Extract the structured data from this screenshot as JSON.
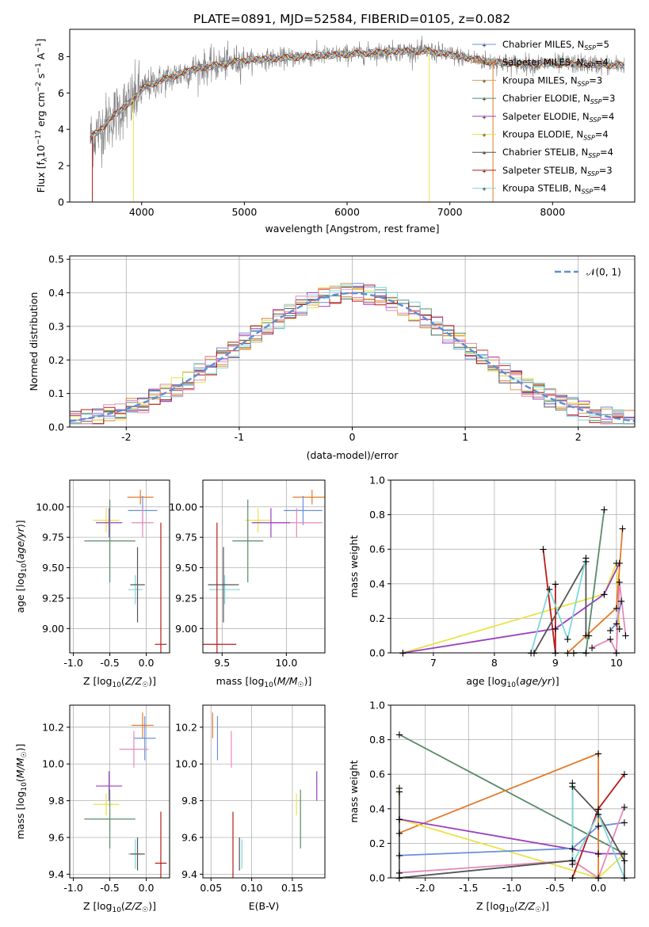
{
  "title": "PLATE=0891, MJD=52584, FIBERID=0105, z=0.082",
  "colors": {
    "Chabrier MILES": "#6a8fdc",
    "Salpeter MILES": "#e47a2a",
    "Kroupa MILES": "#d9a05a",
    "Chabrier ELODIE": "#5a8a6a",
    "Salpeter ELODIE": "#9b3fc0",
    "Kroupa ELODIE": "#e8e34a",
    "Chabrier STELIB": "#555555",
    "Salpeter STELIB": "#b81c1c",
    "Kroupa STELIB": "#7fd6dc",
    "Pink": "#e58ab8",
    "Data": "#808080"
  },
  "chart_data": [
    {
      "id": "spectrum",
      "type": "line",
      "xlabel": "wavelength [Angstrom, rest frame]",
      "ylabel": "Flux [f_λ10^-17 erg cm^-2 s^-1 A^-1]",
      "xlim": [
        3300,
        8800
      ],
      "ylim": [
        0,
        9.5
      ],
      "xticks": [
        4000,
        5000,
        6000,
        7000,
        8000
      ],
      "yticks": [
        0,
        2,
        4,
        6,
        8
      ],
      "legend_position": "right",
      "legend": [
        {
          "name": "Chabrier MILES",
          "label": "Chabrier MILES, N",
          "sub": "SSP",
          "n": "=5"
        },
        {
          "name": "Salpeter MILES",
          "label": "Salpeter MILES, N",
          "sub": "SSP",
          "n": "=4"
        },
        {
          "name": "Kroupa MILES",
          "label": "Kroupa MILES, N",
          "sub": "SSP",
          "n": "=3"
        },
        {
          "name": "Chabrier ELODIE",
          "label": "Chabrier ELODIE, N",
          "sub": "SSP",
          "n": "=3"
        },
        {
          "name": "Salpeter ELODIE",
          "label": "Salpeter ELODIE, N",
          "sub": "SSP",
          "n": "=4"
        },
        {
          "name": "Kroupa ELODIE",
          "label": "Kroupa ELODIE, N",
          "sub": "SSP",
          "n": "=4"
        },
        {
          "name": "Chabrier STELIB",
          "label": "Chabrier STELIB, N",
          "sub": "SSP",
          "n": "=4"
        },
        {
          "name": "Salpeter STELIB",
          "label": "Salpeter STELIB, N",
          "sub": "SSP",
          "n": "=3"
        },
        {
          "name": "Kroupa STELIB",
          "label": "Kroupa STELIB, N",
          "sub": "SSP",
          "n": "=4"
        }
      ],
      "continuum": {
        "x": [
          3500,
          3600,
          3700,
          3800,
          3900,
          4000,
          4100,
          4300,
          4500,
          4700,
          5000,
          5300,
          5600,
          5900,
          6200,
          6500,
          6800,
          7100,
          7400,
          7700,
          8000,
          8300,
          8700
        ],
        "y": [
          3.5,
          4.0,
          4.6,
          5.1,
          5.5,
          6.2,
          6.5,
          6.9,
          7.3,
          7.5,
          7.8,
          7.9,
          8.0,
          8.1,
          8.2,
          8.3,
          8.3,
          8.0,
          7.7,
          7.6,
          7.6,
          7.6,
          7.5
        ]
      },
      "model_range": [
        3500,
        8700
      ],
      "data_range": [
        3500,
        8700
      ],
      "dips": [
        {
          "series": "Salpeter STELIB",
          "x": 3520,
          "y": 0
        },
        {
          "series": "Kroupa ELODIE",
          "x": 3920,
          "y": 0
        },
        {
          "series": "Kroupa ELODIE",
          "x": 6800,
          "y": 0
        },
        {
          "series": "Salpeter MILES",
          "x": 7420,
          "y": 0
        }
      ]
    },
    {
      "id": "residuals",
      "type": "histogram",
      "xlabel": "(data-model)/error",
      "ylabel": "Normed distribution",
      "xlim": [
        -2.5,
        2.5
      ],
      "ylim": [
        0,
        0.51
      ],
      "xticks": [
        -2,
        -1,
        0,
        1,
        2
      ],
      "yticks": [
        0.0,
        0.1,
        0.2,
        0.3,
        0.4,
        0.5
      ],
      "grid": true,
      "legend_position": "top-right",
      "gaussian_label": "𝒩(0, 1)",
      "bin_width": 0.1
    },
    {
      "id": "age-vs-z",
      "type": "errorbar",
      "xlabel": "Z [log₁₀(Z/Z☉)]",
      "ylabel": "age  [log₁₀(age/yr)]",
      "xlim": [
        -1.05,
        0.32
      ],
      "ylim": [
        8.8,
        10.22
      ],
      "xticks": [
        -1.0,
        -0.5,
        0.0
      ],
      "yticks": [
        9.0,
        9.25,
        9.5,
        9.75,
        10.0
      ],
      "grid": true,
      "points": [
        {
          "series": "Salpeter MILES",
          "x": -0.08,
          "y": 10.08,
          "xe": 0.18,
          "ye": 0.06
        },
        {
          "series": "Chabrier MILES",
          "x": -0.05,
          "y": 9.97,
          "xe": 0.2,
          "ye": 0.12
        },
        {
          "series": "Pink",
          "x": -0.05,
          "y": 9.87,
          "xe": 0.15,
          "ye": 0.12
        },
        {
          "series": "Kroupa ELODIE",
          "x": -0.55,
          "y": 9.89,
          "xe": 0.18,
          "ye": 0.1
        },
        {
          "series": "Salpeter ELODIE",
          "x": -0.51,
          "y": 9.87,
          "xe": 0.18,
          "ye": 0.12
        },
        {
          "series": "Chabrier ELODIE",
          "x": -0.5,
          "y": 9.72,
          "xe": 0.35,
          "ye": 0.34
        },
        {
          "series": "Kroupa STELIB",
          "x": -0.15,
          "y": 9.32,
          "xe": 0.1,
          "ye": 0.12
        },
        {
          "series": "Chabrier STELIB",
          "x": -0.12,
          "y": 9.36,
          "xe": 0.1,
          "ye": 0.31
        },
        {
          "series": "Salpeter STELIB",
          "x": 0.2,
          "y": 8.87,
          "xe": 0.08,
          "ye": 1.0
        }
      ]
    },
    {
      "id": "age-vs-mass",
      "type": "errorbar",
      "xlabel": "mass [log₁₀(M/M☉)]",
      "ylabel": "",
      "xlim": [
        9.35,
        10.3
      ],
      "ylim": [
        8.8,
        10.22
      ],
      "xticks": [
        9.5,
        10.0
      ],
      "yticks": [
        9.0,
        9.25,
        9.5,
        9.75,
        10.0
      ],
      "grid": true,
      "points": [
        {
          "series": "Salpeter MILES",
          "x": 10.2,
          "y": 10.08,
          "xe": 0.15,
          "ye": 0.06
        },
        {
          "series": "Chabrier MILES",
          "x": 10.13,
          "y": 9.97,
          "xe": 0.15,
          "ye": 0.12
        },
        {
          "series": "Pink",
          "x": 10.08,
          "y": 9.87,
          "xe": 0.2,
          "ye": 0.12
        },
        {
          "series": "Kroupa ELODIE",
          "x": 9.78,
          "y": 9.89,
          "xe": 0.1,
          "ye": 0.1
        },
        {
          "series": "Salpeter ELODIE",
          "x": 9.88,
          "y": 9.87,
          "xe": 0.15,
          "ye": 0.12
        },
        {
          "series": "Chabrier ELODIE",
          "x": 9.7,
          "y": 9.72,
          "xe": 0.12,
          "ye": 0.34
        },
        {
          "series": "Kroupa STELIB",
          "x": 9.52,
          "y": 9.32,
          "xe": 0.12,
          "ye": 0.12
        },
        {
          "series": "Chabrier STELIB",
          "x": 9.51,
          "y": 9.36,
          "xe": 0.12,
          "ye": 0.31
        },
        {
          "series": "Salpeter STELIB",
          "x": 9.46,
          "y": 8.87,
          "xe": 0.15,
          "ye": 1.0
        }
      ]
    },
    {
      "id": "weight-vs-age",
      "type": "line",
      "xlabel": "age  [log₁₀(age/yr)]",
      "ylabel": "mass weight",
      "xlim": [
        6.3,
        10.3
      ],
      "ylim": [
        0,
        1.0
      ],
      "xticks": [
        7,
        8,
        9,
        10
      ],
      "yticks": [
        0.0,
        0.2,
        0.4,
        0.6,
        0.8,
        1.0
      ],
      "grid": true,
      "series": [
        {
          "name": "Kroupa ELODIE",
          "x": [
            6.5,
            9.8,
            10.0,
            10.05
          ],
          "y": [
            0.0,
            0.34,
            0.52,
            0.14
          ]
        },
        {
          "name": "Salpeter ELODIE",
          "x": [
            6.5,
            9.0,
            9.8,
            10.05
          ],
          "y": [
            0.0,
            0.14,
            0.34,
            0.52
          ]
        },
        {
          "name": "Salpeter STELIB",
          "x": [
            8.8,
            9.0,
            9.0
          ],
          "y": [
            0.6,
            0.0,
            0.4
          ]
        },
        {
          "name": "Chabrier STELIB",
          "x": [
            8.65,
            9.5,
            9.5,
            9.55
          ],
          "y": [
            0.0,
            0.53,
            0.1,
            0.1
          ]
        },
        {
          "name": "Chabrier ELODIE",
          "x": [
            9.3,
            9.5,
            9.8
          ],
          "y": [
            0.0,
            0.0,
            0.83
          ]
        },
        {
          "name": "Salpeter MILES",
          "x": [
            9.2,
            10.0,
            10.1
          ],
          "y": [
            0.0,
            0.26,
            0.72
          ]
        },
        {
          "name": "Chabrier MILES",
          "x": [
            9.9,
            10.0,
            10.08
          ],
          "y": [
            0.13,
            0.17,
            0.3
          ]
        },
        {
          "name": "Pink",
          "x": [
            9.6,
            9.9,
            10.0,
            10.05,
            10.15
          ],
          "y": [
            0.03,
            0.08,
            0.0,
            0.41,
            0.1
          ]
        },
        {
          "name": "Kroupa STELIB",
          "x": [
            8.6,
            8.9,
            9.2,
            9.5
          ],
          "y": [
            0.0,
            0.37,
            0.08,
            0.55
          ]
        }
      ]
    },
    {
      "id": "mass-vs-z",
      "type": "errorbar",
      "xlabel": "Z [log₁₀(Z/Z☉)]",
      "ylabel": "mass [log₁₀(M/M☉)]",
      "xlim": [
        -1.05,
        0.32
      ],
      "ylim": [
        9.38,
        10.32
      ],
      "xticks": [
        -1.0,
        -0.5,
        0.0
      ],
      "yticks": [
        9.4,
        9.6,
        9.8,
        10.0,
        10.2
      ],
      "grid": true,
      "points": [
        {
          "series": "Salpeter MILES",
          "x": -0.05,
          "y": 10.21,
          "xe": 0.15,
          "ye": 0.07
        },
        {
          "series": "Chabrier MILES",
          "x": -0.02,
          "y": 10.14,
          "xe": 0.15,
          "ye": 0.12
        },
        {
          "series": "Pink",
          "x": -0.17,
          "y": 10.08,
          "xe": 0.2,
          "ye": 0.1
        },
        {
          "series": "Salpeter ELODIE",
          "x": -0.51,
          "y": 9.88,
          "xe": 0.18,
          "ye": 0.08
        },
        {
          "series": "Kroupa ELODIE",
          "x": -0.55,
          "y": 9.78,
          "xe": 0.18,
          "ye": 0.06
        },
        {
          "series": "Chabrier ELODIE",
          "x": -0.5,
          "y": 9.7,
          "xe": 0.35,
          "ye": 0.16
        },
        {
          "series": "Kroupa STELIB",
          "x": -0.15,
          "y": 9.51,
          "xe": 0.1,
          "ye": 0.08
        },
        {
          "series": "Chabrier STELIB",
          "x": -0.12,
          "y": 9.51,
          "xe": 0.1,
          "ye": 0.09
        },
        {
          "series": "Salpeter STELIB",
          "x": 0.2,
          "y": 9.46,
          "xe": 0.08,
          "ye": 0.28
        }
      ]
    },
    {
      "id": "mass-vs-ebv",
      "type": "errorbar",
      "xlabel": "E(B-V)",
      "ylabel": "",
      "xlim": [
        0.04,
        0.19
      ],
      "ylim": [
        9.38,
        10.32
      ],
      "xticks": [
        0.05,
        0.1,
        0.15
      ],
      "yticks": [
        9.4,
        9.6,
        9.8,
        10.0,
        10.2
      ],
      "grid": true,
      "points": [
        {
          "series": "Salpeter MILES",
          "x": 0.052,
          "y": 10.21,
          "xe": 0,
          "ye": 0.07
        },
        {
          "series": "Chabrier MILES",
          "x": 0.058,
          "y": 10.14,
          "xe": 0,
          "ye": 0.12
        },
        {
          "series": "Pink",
          "x": 0.075,
          "y": 10.08,
          "xe": 0,
          "ye": 0.1
        },
        {
          "series": "Salpeter ELODIE",
          "x": 0.18,
          "y": 9.88,
          "xe": 0,
          "ye": 0.08
        },
        {
          "series": "Kroupa ELODIE",
          "x": 0.155,
          "y": 9.78,
          "xe": 0,
          "ye": 0.06
        },
        {
          "series": "Chabrier ELODIE",
          "x": 0.16,
          "y": 9.7,
          "xe": 0,
          "ye": 0.16
        },
        {
          "series": "Kroupa STELIB",
          "x": 0.088,
          "y": 9.51,
          "xe": 0,
          "ye": 0.08
        },
        {
          "series": "Chabrier STELIB",
          "x": 0.085,
          "y": 9.51,
          "xe": 0,
          "ye": 0.09
        },
        {
          "series": "Salpeter STELIB",
          "x": 0.077,
          "y": 9.46,
          "xe": 0,
          "ye": 0.28
        }
      ]
    },
    {
      "id": "weight-vs-z",
      "type": "line",
      "xlabel": "Z [log₁₀(Z/Z☉)]",
      "ylabel": "mass weight",
      "xlim": [
        -2.4,
        0.42
      ],
      "ylim": [
        0,
        1.0
      ],
      "xticks": [
        -2.0,
        -1.5,
        -1.0,
        -0.5,
        0.0
      ],
      "yticks": [
        0.0,
        0.2,
        0.4,
        0.6,
        0.8,
        1.0
      ],
      "grid": true,
      "series": [
        {
          "name": "Chabrier ELODIE",
          "x": [
            -2.3,
            0.3
          ],
          "y": [
            0.83,
            0.14
          ]
        },
        {
          "name": "Salpeter MILES",
          "x": [
            -2.3,
            0.0,
            0.0
          ],
          "y": [
            0.26,
            0.72,
            0.0
          ]
        },
        {
          "name": "Kroupa ELODIE",
          "x": [
            -2.3,
            -2.3,
            0.0,
            0.3
          ],
          "y": [
            0.52,
            0.34,
            0.0,
            0.14
          ]
        },
        {
          "name": "Salpeter ELODIE",
          "x": [
            -2.3,
            0.0,
            0.3
          ],
          "y": [
            0.34,
            0.14,
            0.14
          ]
        },
        {
          "name": "Chabrier MILES",
          "x": [
            -2.3,
            -0.3,
            0.0,
            0.3
          ],
          "y": [
            0.13,
            0.17,
            0.3,
            0.32
          ]
        },
        {
          "name": "Pink",
          "x": [
            -2.3,
            -0.3,
            0.0,
            0.3
          ],
          "y": [
            0.03,
            0.1,
            0.0,
            0.41
          ]
        },
        {
          "name": "Salpeter STELIB",
          "x": [
            -0.3,
            0.0,
            0.3
          ],
          "y": [
            0.0,
            0.4,
            0.6
          ]
        },
        {
          "name": "Chabrier STELIB",
          "x": [
            -2.3,
            -2.3,
            -0.3,
            -0.3,
            0.0,
            0.3,
            0.3
          ],
          "y": [
            0.5,
            0.0,
            0.1,
            0.53,
            0.37,
            0.1,
            0.0
          ]
        },
        {
          "name": "Kroupa STELIB",
          "x": [
            -0.3,
            -0.3,
            0.0,
            0.3
          ],
          "y": [
            0.55,
            0.08,
            0.37,
            0.0
          ]
        }
      ]
    }
  ]
}
